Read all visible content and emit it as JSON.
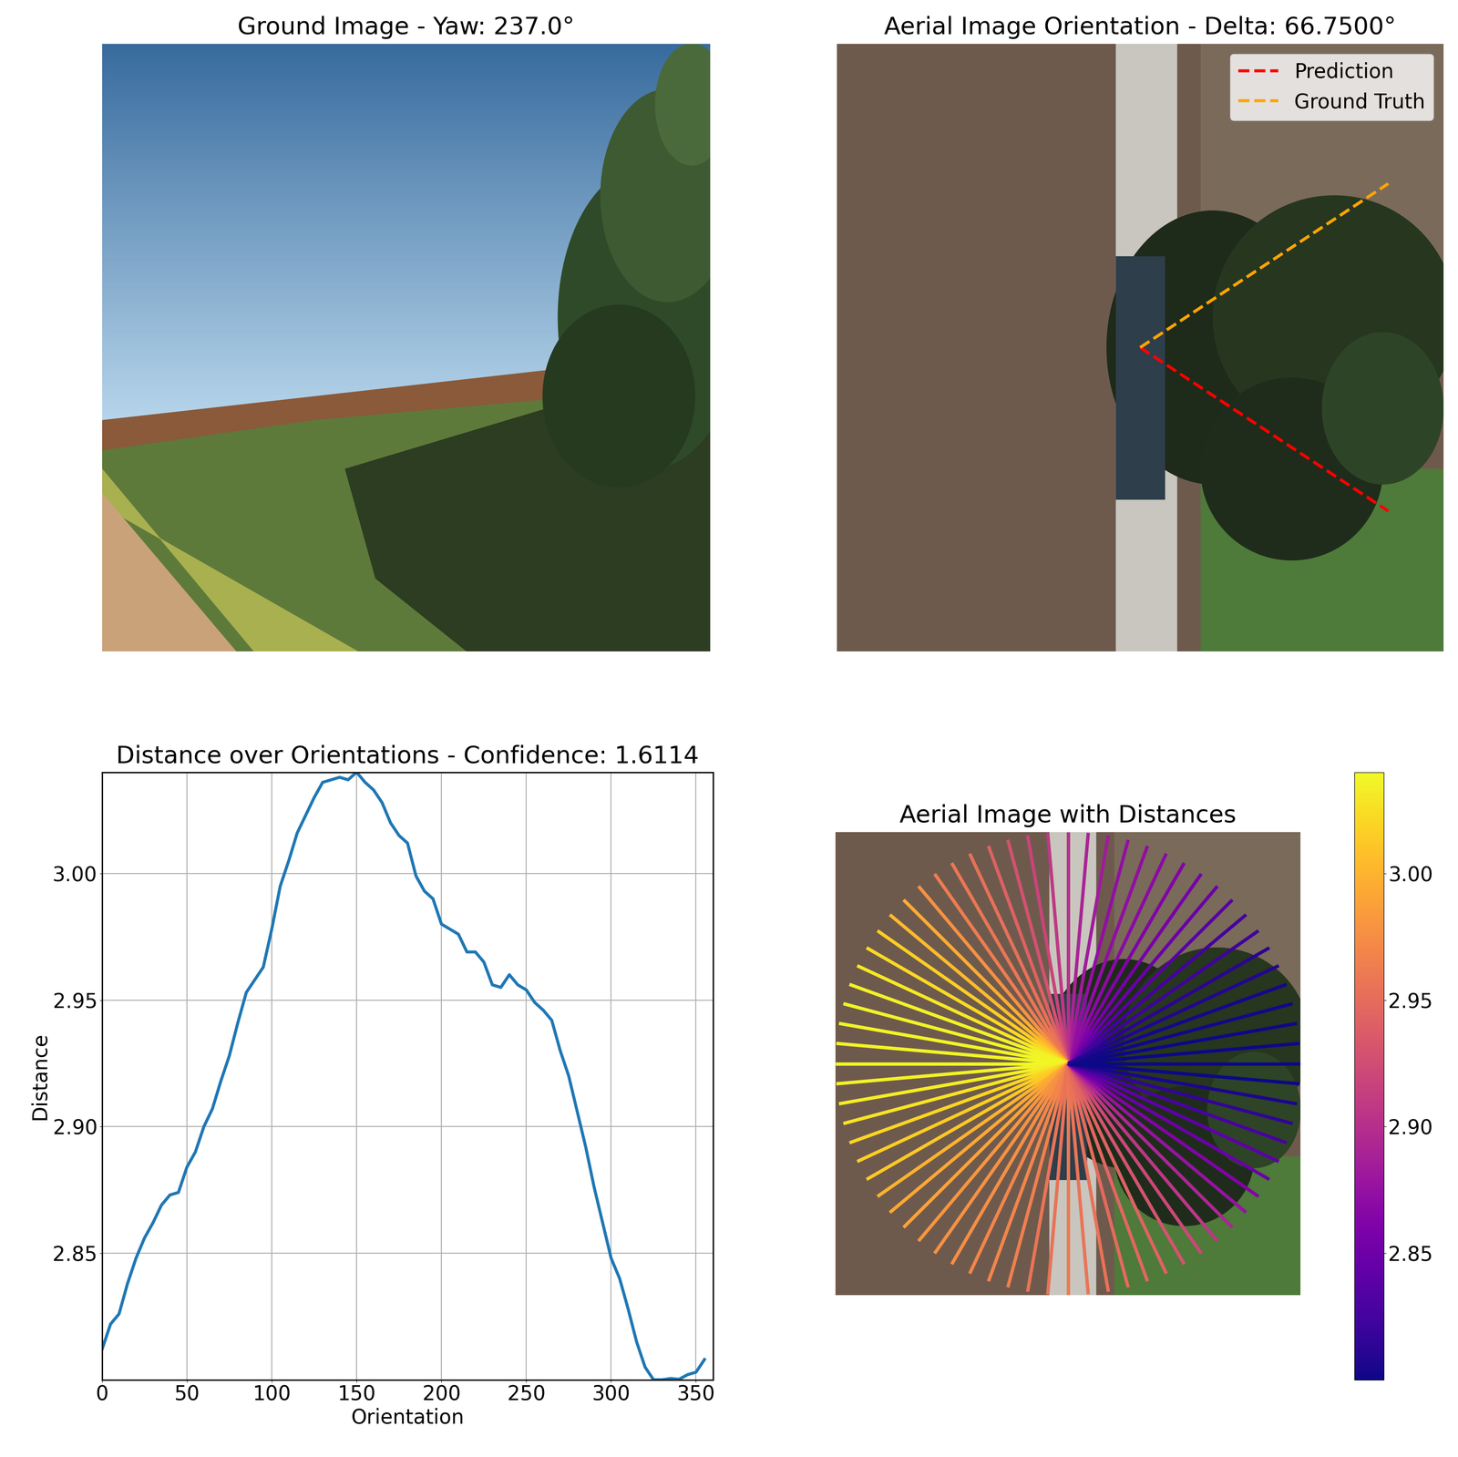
{
  "chart_data": [
    {
      "type": "image",
      "title": "Ground Image - Yaw: 237.0°",
      "tick_labels": false
    },
    {
      "type": "image",
      "title": "Aerial Image Orientation - Delta: 66.7500°",
      "tick_labels": false,
      "legend": "upper right",
      "series": [
        {
          "name": "Prediction",
          "color": "#ff0000",
          "line_style": "dashed",
          "angle": -33.35
        },
        {
          "name": "Ground Truth",
          "color": "#ffa500",
          "line_style": "dashed",
          "angle": 33.4
        }
      ]
    },
    {
      "type": "line",
      "title": "Distance over Orientations - Confidence: 1.6114",
      "x_label": "Orientation",
      "y_label": "Distance",
      "grid": true,
      "color": "#1f77b4",
      "x": [
        0,
        5,
        10,
        15,
        20,
        25,
        30,
        35,
        40,
        45,
        50,
        55,
        60,
        65,
        70,
        75,
        80,
        85,
        90,
        95,
        100,
        105,
        110,
        115,
        120,
        125,
        130,
        135,
        140,
        145,
        150,
        155,
        160,
        165,
        170,
        175,
        180,
        185,
        190,
        195,
        200,
        205,
        210,
        215,
        220,
        225,
        230,
        235,
        240,
        245,
        250,
        255,
        260,
        265,
        270,
        275,
        280,
        285,
        290,
        295,
        300,
        305,
        310,
        315,
        320,
        325,
        330,
        335,
        340,
        345,
        350,
        355
      ],
      "values": [
        2.812,
        2.822,
        2.826,
        2.838,
        2.848,
        2.856,
        2.862,
        2.869,
        2.873,
        2.874,
        2.884,
        2.89,
        2.9,
        2.907,
        2.918,
        2.928,
        2.941,
        2.953,
        2.958,
        2.963,
        2.978,
        2.995,
        3.005,
        3.016,
        3.023,
        3.03,
        3.036,
        3.037,
        3.038,
        3.037,
        3.04,
        3.036,
        3.033,
        3.028,
        3.02,
        3.015,
        3.012,
        2.999,
        2.993,
        2.99,
        2.98,
        2.978,
        2.976,
        2.969,
        2.969,
        2.965,
        2.956,
        2.955,
        2.96,
        2.956,
        2.954,
        2.949,
        2.946,
        2.942,
        2.93,
        2.92,
        2.906,
        2.892,
        2.876,
        2.862,
        2.848,
        2.84,
        2.828,
        2.815,
        2.805,
        2.8,
        2.8,
        2.8005,
        2.8002,
        2.802,
        2.803,
        2.808
      ],
      "xlim": [
        0,
        360
      ],
      "xticks": [
        0,
        50,
        100,
        150,
        200,
        250,
        300,
        350
      ],
      "ylim": [
        2.8,
        3.04
      ],
      "yticks": [
        2.85,
        {
          "value": 2.9,
          "label": "2.90"
        },
        2.95,
        {
          "value": 3.0,
          "label": "3.00"
        }
      ]
    },
    {
      "type": "radial",
      "title": "Aerial Image with Distances",
      "tick_labels": false,
      "color": "plasma",
      "x": [
        0,
        5,
        10,
        15,
        20,
        25,
        30,
        35,
        40,
        45,
        50,
        55,
        60,
        65,
        70,
        75,
        80,
        85,
        90,
        95,
        100,
        105,
        110,
        115,
        120,
        125,
        130,
        135,
        140,
        145,
        150,
        155,
        160,
        165,
        170,
        175,
        180,
        185,
        190,
        195,
        200,
        205,
        210,
        215,
        220,
        225,
        230,
        235,
        240,
        245,
        250,
        255,
        260,
        265,
        270,
        275,
        280,
        285,
        290,
        295,
        300,
        305,
        310,
        315,
        320,
        325,
        330,
        335,
        340,
        345,
        350,
        355
      ],
      "values": [
        2.812,
        2.822,
        2.826,
        2.838,
        2.848,
        2.856,
        2.862,
        2.869,
        2.873,
        2.874,
        2.884,
        2.89,
        2.9,
        2.907,
        2.918,
        2.928,
        2.941,
        2.953,
        2.958,
        2.963,
        2.978,
        2.995,
        3.005,
        3.016,
        3.023,
        3.03,
        3.036,
        3.037,
        3.038,
        3.037,
        3.04,
        3.036,
        3.033,
        3.028,
        3.02,
        3.015,
        3.012,
        2.999,
        2.993,
        2.99,
        2.98,
        2.978,
        2.976,
        2.969,
        2.969,
        2.965,
        2.956,
        2.955,
        2.96,
        2.956,
        2.954,
        2.949,
        2.946,
        2.942,
        2.93,
        2.92,
        2.906,
        2.892,
        2.876,
        2.862,
        2.848,
        2.84,
        2.828,
        2.815,
        2.805,
        2.8,
        2.8,
        2.8005,
        2.8002,
        2.802,
        2.803,
        2.808
      ],
      "colorbar_lim": [
        2.8,
        3.04
      ],
      "colorbar_ticks": [
        2.85,
        {
          "value": 2.9,
          "label": "2.90"
        },
        2.95,
        {
          "value": 3.0,
          "label": "3.00"
        }
      ]
    }
  ]
}
